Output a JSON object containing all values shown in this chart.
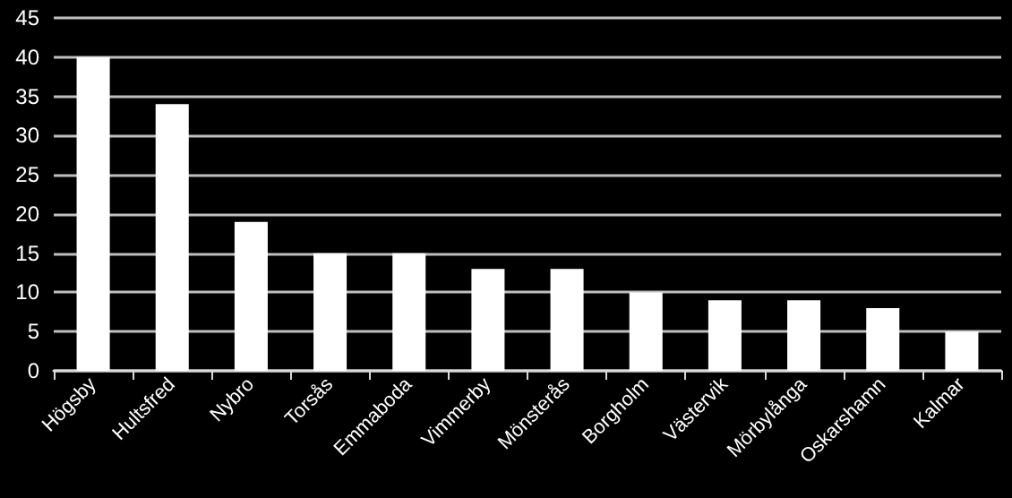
{
  "chart_data": {
    "type": "bar",
    "categories": [
      "Högsby",
      "Hultsfred",
      "Nybro",
      "Torsås",
      "Emmaboda",
      "Vimmerby",
      "Mönsterås",
      "Borgholm",
      "Västervik",
      "Mörbylånga",
      "Oskarshamn",
      "Kalmar"
    ],
    "values": [
      40,
      34,
      19,
      15,
      15,
      13,
      13,
      10,
      9,
      9,
      8,
      5
    ],
    "color": "#ffffff",
    "ylim": [
      0,
      45
    ],
    "yticks": [
      0,
      5,
      10,
      15,
      20,
      25,
      30,
      35,
      40,
      45
    ],
    "grid": "y"
  }
}
